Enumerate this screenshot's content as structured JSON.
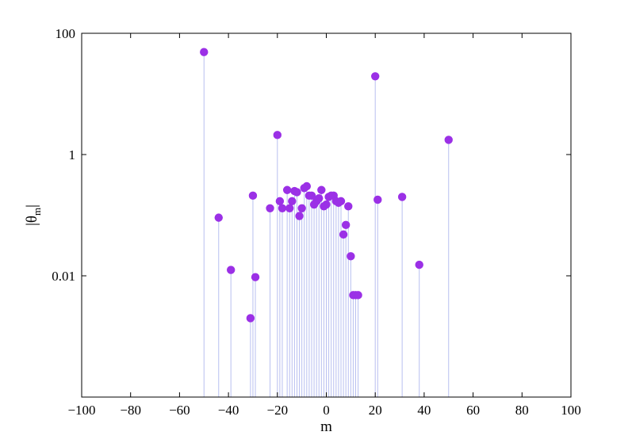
{
  "chart_data": {
    "type": "scatter",
    "style": "stem",
    "xlabel": "m",
    "ylabel": "|θ_m|",
    "ylabel_main": "|θ",
    "ylabel_sub": "m",
    "ylabel_close": "|",
    "xlim": [
      -100,
      100
    ],
    "ylim": [
      0.0001,
      100
    ],
    "yscale": "log",
    "grid": false,
    "legend": "none",
    "x_ticks": [
      "−100",
      "−80",
      "−60",
      "−40",
      "−20",
      "0",
      "20",
      "40",
      "60",
      "80",
      "100"
    ],
    "x_tick_values": [
      -100,
      -80,
      -60,
      -40,
      -20,
      0,
      20,
      40,
      60,
      80,
      100
    ],
    "y_ticks": [
      "0.01",
      "1",
      "100"
    ],
    "y_tick_values": [
      0.01,
      1,
      100
    ],
    "colors": {
      "marker": "#9b30e6",
      "stem": "#b8bff0",
      "axis": "#000000"
    },
    "series": [
      {
        "x": [
          -50,
          -44,
          -39,
          -31,
          -30,
          -29,
          -23,
          -20,
          -19,
          -18,
          -16,
          -15,
          -14,
          -13,
          -12,
          -11,
          -10,
          -9,
          -8,
          -7,
          -6,
          -5,
          -4,
          -3,
          -2,
          -1,
          0,
          1,
          2,
          3,
          4,
          5,
          6,
          7,
          8,
          9,
          10,
          11,
          12,
          13,
          20,
          21,
          31,
          38,
          50
        ],
        "y": [
          49,
          0.091,
          0.0125,
          0.002,
          0.21,
          0.0095,
          0.13,
          2.1,
          0.17,
          0.13,
          0.26,
          0.13,
          0.17,
          0.25,
          0.24,
          0.097,
          0.13,
          0.28,
          0.3,
          0.21,
          0.21,
          0.15,
          0.17,
          0.19,
          0.26,
          0.14,
          0.15,
          0.2,
          0.21,
          0.21,
          0.17,
          0.16,
          0.17,
          0.048,
          0.069,
          0.14,
          0.021,
          0.0048,
          0.0048,
          0.0048,
          19.5,
          0.18,
          0.2,
          0.0152,
          1.75
        ]
      }
    ]
  }
}
